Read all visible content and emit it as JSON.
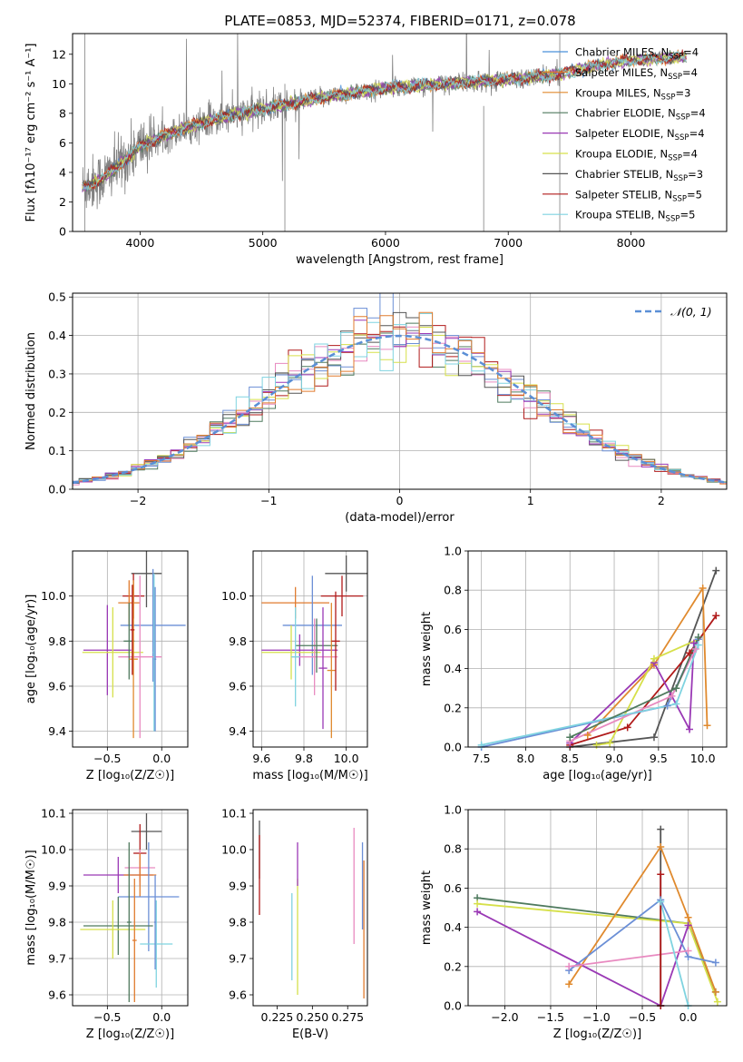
{
  "figure": {
    "title": "PLATE=0853, MJD=52374, FIBERID=0171, z=0.078"
  },
  "colors": {
    "chabrier_miles": "#4a90d9",
    "salpeter_miles": "#e07b2e",
    "kroupa_miles": "#e08a2e",
    "chabrier_elodie": "#4f7a5e",
    "salpeter_elodie": "#9a39b5",
    "kroupa_elodie": "#d6e04a",
    "chabrier_stelib": "#555555",
    "salpeter_stelib": "#b01a1a",
    "kroupa_stelib": "#7fd3e0",
    "pink": "#e88ac0",
    "blue": "#6b8fd6",
    "lime": "#b7e04a",
    "grid": "#b0b0b0",
    "data_gray": "#808080",
    "normal_curve": "#5b8fd6"
  },
  "chart_data": [
    {
      "id": "spectrum",
      "type": "line",
      "xlabel": "wavelength [Angstrom, rest frame]",
      "ylabel": "Flux [fλ10⁻¹⁷ erg cm⁻² s⁻¹ A⁻¹]",
      "xlim": [
        3450,
        8780
      ],
      "ylim": [
        0,
        13.4
      ],
      "xticks": [
        4000,
        5000,
        6000,
        7000,
        8000
      ],
      "yticks": [
        0,
        2,
        4,
        6,
        8,
        10,
        12
      ],
      "grid": false,
      "legend_position": "top-right",
      "legend": [
        {
          "label": "Chabrier MILES, N",
          "sub": "SSP",
          "suffix": "=4",
          "color": "chabrier_miles"
        },
        {
          "label": "Salpeter MILES, N",
          "sub": "SSP",
          "suffix": "=4",
          "color": "salpeter_miles"
        },
        {
          "label": "Kroupa MILES, N",
          "sub": "SSP",
          "suffix": "=3",
          "color": "kroupa_miles"
        },
        {
          "label": "Chabrier ELODIE, N",
          "sub": "SSP",
          "suffix": "=4",
          "color": "chabrier_elodie"
        },
        {
          "label": "Salpeter ELODIE, N",
          "sub": "SSP",
          "suffix": "=4",
          "color": "salpeter_elodie"
        },
        {
          "label": "Kroupa ELODIE, N",
          "sub": "SSP",
          "suffix": "=4",
          "color": "kroupa_elodie"
        },
        {
          "label": "Chabrier STELIB, N",
          "sub": "SSP",
          "suffix": "=3",
          "color": "chabrier_stelib"
        },
        {
          "label": "Salpeter STELIB, N",
          "sub": "SSP",
          "suffix": "=5",
          "color": "salpeter_stelib"
        },
        {
          "label": "Kroupa STELIB, N",
          "sub": "SSP",
          "suffix": "=5",
          "color": "kroupa_stelib"
        }
      ],
      "continuum": [
        [
          3530,
          3.0
        ],
        [
          3700,
          3.6
        ],
        [
          3900,
          5.0
        ],
        [
          4000,
          5.8
        ],
        [
          4300,
          6.8
        ],
        [
          4600,
          7.6
        ],
        [
          5000,
          8.3
        ],
        [
          5500,
          9.1
        ],
        [
          6000,
          9.7
        ],
        [
          6500,
          10.0
        ],
        [
          7000,
          10.3
        ],
        [
          7400,
          10.6
        ],
        [
          7700,
          11.2
        ],
        [
          8000,
          11.6
        ],
        [
          8400,
          11.8
        ]
      ],
      "model_range": [
        3530,
        8450
      ],
      "data_range": [
        3530,
        7430
      ]
    },
    {
      "id": "residuals",
      "type": "histogram",
      "xlabel": "(data-model)/error",
      "ylabel": "Normed distribution",
      "xlim": [
        -2.5,
        2.5
      ],
      "ylim": [
        0,
        0.51
      ],
      "xticks": [
        -2,
        -1,
        0,
        1,
        2
      ],
      "yticks": [
        0,
        0.1,
        0.2,
        0.3,
        0.4,
        0.5
      ],
      "grid": true,
      "legend": [
        {
          "label": "𝒩(0, 1)",
          "style": "dashed",
          "color": "normal_curve"
        }
      ],
      "legend_position": "top-right",
      "bin_width": 0.1,
      "series_colors": [
        "chabrier_elodie",
        "salpeter_stelib",
        "pink",
        "kroupa_elodie",
        "blue",
        "chabrier_stelib",
        "salpeter_elodie",
        "kroupa_stelib",
        "salpeter_miles"
      ]
    },
    {
      "id": "age_vs_Z",
      "type": "errorbar",
      "xlabel": "Z [log₁₀(Z/Z☉)]",
      "ylabel": "age  [log₁₀(age/yr)]",
      "xlim": [
        -0.82,
        0.24
      ],
      "ylim": [
        9.33,
        10.2
      ],
      "xticks": [
        -0.5,
        0.0
      ],
      "yticks": [
        9.4,
        9.6,
        9.8,
        10.0
      ],
      "grid": true,
      "points": [
        {
          "x": -0.14,
          "y": 10.1,
          "xerr": 0.14,
          "yerr": 0.15,
          "color": "chabrier_stelib"
        },
        {
          "x": -0.26,
          "y": 10.0,
          "xerr": 0.1,
          "yerr": 0.1,
          "color": "salpeter_stelib"
        },
        {
          "x": -0.3,
          "y": 9.97,
          "xerr": 0.1,
          "yerr": 0.1,
          "color": "salpeter_miles"
        },
        {
          "x": -0.08,
          "y": 9.87,
          "xerr": 0.3,
          "yerr": 0.25,
          "color": "blue"
        },
        {
          "x": -0.5,
          "y": 9.76,
          "xerr": 0.22,
          "yerr": 0.2,
          "color": "salpeter_elodie"
        },
        {
          "x": -0.45,
          "y": 9.75,
          "xerr": 0.28,
          "yerr": 0.2,
          "color": "kroupa_elodie"
        },
        {
          "x": -0.2,
          "y": 9.73,
          "xerr": 0.2,
          "yerr": 0.36,
          "color": "pink"
        },
        {
          "x": -0.3,
          "y": 9.8,
          "xerr": 0.05,
          "yerr": 0.17,
          "color": "chabrier_elodie"
        },
        {
          "x": -0.26,
          "y": 9.72,
          "xerr": 0.04,
          "yerr": 0.35,
          "color": "kroupa_miles"
        },
        {
          "x": -0.27,
          "y": 9.85,
          "xerr": 0.02,
          "yerr": 0.2,
          "color": "salpeter_stelib"
        },
        {
          "x": -0.07,
          "y": 9.75,
          "xerr": 0.01,
          "yerr": 0.35,
          "color": "kroupa_stelib"
        },
        {
          "x": -0.06,
          "y": 9.72,
          "xerr": 0.01,
          "yerr": 0.32,
          "color": "blue"
        }
      ]
    },
    {
      "id": "age_vs_mass",
      "type": "errorbar",
      "xlabel": "mass [log₁₀(M/M☉)]",
      "ylabel": "",
      "xlim": [
        9.56,
        10.1
      ],
      "ylim": [
        9.33,
        10.2
      ],
      "xticks": [
        9.6,
        9.8,
        10.0
      ],
      "yticks": [
        9.4,
        9.6,
        9.8,
        10.0
      ],
      "grid": true,
      "points": [
        {
          "x": 10.0,
          "y": 10.1,
          "xerr": 0.1,
          "yerr": 0.08,
          "color": "chabrier_stelib"
        },
        {
          "x": 9.98,
          "y": 10.0,
          "xerr": 0.1,
          "yerr": 0.09,
          "color": "salpeter_stelib"
        },
        {
          "x": 9.76,
          "y": 9.97,
          "xerr": 0.16,
          "yerr": 0.07,
          "color": "salpeter_miles"
        },
        {
          "x": 9.84,
          "y": 9.87,
          "xerr": 0.14,
          "yerr": 0.22,
          "color": "blue"
        },
        {
          "x": 9.78,
          "y": 9.76,
          "xerr": 0.18,
          "yerr": 0.07,
          "color": "salpeter_elodie"
        },
        {
          "x": 9.74,
          "y": 9.75,
          "xerr": 0.14,
          "yerr": 0.12,
          "color": "kroupa_elodie"
        },
        {
          "x": 9.85,
          "y": 9.73,
          "xerr": 0.11,
          "yerr": 0.17,
          "color": "pink"
        },
        {
          "x": 9.86,
          "y": 9.78,
          "xerr": 0.1,
          "yerr": 0.12,
          "color": "chabrier_elodie"
        },
        {
          "x": 9.93,
          "y": 9.67,
          "xerr": 0.02,
          "yerr": 0.3,
          "color": "kroupa_miles"
        },
        {
          "x": 9.95,
          "y": 9.8,
          "xerr": 0.02,
          "yerr": 0.22,
          "color": "salpeter_stelib"
        },
        {
          "x": 9.76,
          "y": 9.73,
          "xerr": 0.02,
          "yerr": 0.22,
          "color": "kroupa_stelib"
        },
        {
          "x": 9.89,
          "y": 9.68,
          "xerr": 0.02,
          "yerr": 0.27,
          "color": "salpeter_elodie"
        }
      ]
    },
    {
      "id": "weight_vs_age",
      "type": "line",
      "xlabel": "age  [log₁₀(age/yr)]",
      "ylabel": "mass weight",
      "xlim": [
        7.35,
        10.27
      ],
      "ylim": [
        0,
        1.0
      ],
      "xticks": [
        7.5,
        8.0,
        8.5,
        9.0,
        9.5,
        10.0
      ],
      "yticks": [
        0.0,
        0.2,
        0.4,
        0.6,
        0.8,
        1.0
      ],
      "grid": true,
      "series": [
        {
          "color": "chabrier_stelib",
          "x": [
            8.5,
            9.45,
            10.15
          ],
          "y": [
            0.0,
            0.05,
            0.9
          ]
        },
        {
          "color": "salpeter_stelib",
          "x": [
            8.5,
            9.15,
            9.85,
            10.15
          ],
          "y": [
            0.01,
            0.1,
            0.48,
            0.67
          ]
        },
        {
          "color": "kroupa_miles",
          "x": [
            8.7,
            9.45,
            10.0,
            10.05
          ],
          "y": [
            0.06,
            0.42,
            0.81,
            0.11
          ]
        },
        {
          "color": "salpeter_elodie",
          "x": [
            8.5,
            9.45,
            9.85,
            9.9
          ],
          "y": [
            0.02,
            0.43,
            0.09,
            0.53
          ]
        },
        {
          "color": "kroupa_elodie",
          "x": [
            8.8,
            8.95,
            9.45,
            9.95
          ],
          "y": [
            0.01,
            0.02,
            0.45,
            0.55
          ]
        },
        {
          "color": "blue",
          "x": [
            7.5,
            9.6,
            9.95
          ],
          "y": [
            0.0,
            0.21,
            0.55
          ]
        },
        {
          "color": "pink",
          "x": [
            8.5,
            9.65,
            9.92
          ],
          "y": [
            0.03,
            0.26,
            0.5
          ]
        },
        {
          "color": "kroupa_stelib",
          "x": [
            7.5,
            9.7,
            9.95
          ],
          "y": [
            0.01,
            0.22,
            0.52
          ]
        },
        {
          "color": "chabrier_elodie",
          "x": [
            8.5,
            9.7,
            9.95
          ],
          "y": [
            0.05,
            0.3,
            0.56
          ]
        }
      ]
    },
    {
      "id": "mass_vs_Z",
      "type": "errorbar",
      "xlabel": "Z [log₁₀(Z/Z☉)]",
      "ylabel": "mass [log₁₀(M/M☉)]",
      "xlim": [
        -0.82,
        0.24
      ],
      "ylim": [
        9.57,
        10.11
      ],
      "xticks": [
        -0.5,
        0.0
      ],
      "yticks": [
        9.6,
        9.7,
        9.8,
        9.9,
        10.0,
        10.1
      ],
      "grid": true,
      "points": [
        {
          "x": -0.14,
          "y": 10.05,
          "xerr": 0.14,
          "yerr": 0.05,
          "color": "chabrier_stelib"
        },
        {
          "x": -0.2,
          "y": 9.99,
          "xerr": 0.06,
          "yerr": 0.08,
          "color": "salpeter_stelib"
        },
        {
          "x": -0.2,
          "y": 9.95,
          "xerr": 0.14,
          "yerr": 0.05,
          "color": "pink"
        },
        {
          "x": -0.4,
          "y": 9.93,
          "xerr": 0.32,
          "yerr": 0.05,
          "color": "salpeter_elodie"
        },
        {
          "x": -0.2,
          "y": 9.93,
          "xerr": 0.15,
          "yerr": 0.06,
          "color": "salpeter_miles"
        },
        {
          "x": -0.12,
          "y": 9.87,
          "xerr": 0.28,
          "yerr": 0.15,
          "color": "blue"
        },
        {
          "x": -0.4,
          "y": 9.79,
          "xerr": 0.32,
          "yerr": 0.08,
          "color": "chabrier_elodie"
        },
        {
          "x": -0.45,
          "y": 9.78,
          "xerr": 0.3,
          "yerr": 0.08,
          "color": "kroupa_elodie"
        },
        {
          "x": -0.05,
          "y": 9.74,
          "xerr": 0.15,
          "yerr": 0.12,
          "color": "kroupa_stelib"
        },
        {
          "x": -0.3,
          "y": 9.8,
          "xerr": 0.02,
          "yerr": 0.22,
          "color": "chabrier_elodie"
        },
        {
          "x": -0.25,
          "y": 9.75,
          "xerr": 0.02,
          "yerr": 0.17,
          "color": "salpeter_miles"
        },
        {
          "x": -0.06,
          "y": 9.8,
          "xerr": 0.01,
          "yerr": 0.13,
          "color": "blue"
        }
      ]
    },
    {
      "id": "mass_vs_ebv",
      "type": "errorbar",
      "xlabel": "E(B-V)",
      "ylabel": "",
      "xlim": [
        0.208,
        0.289
      ],
      "ylim": [
        9.57,
        10.11
      ],
      "xticks": [
        0.225,
        0.25,
        0.275
      ],
      "xticklabels": [
        "0.225",
        "0.250",
        "0.275"
      ],
      "yticks": [
        9.6,
        9.7,
        9.8,
        9.9,
        10.0,
        10.1
      ],
      "grid": false,
      "points": [
        {
          "x": 0.2125,
          "y": 10.0,
          "yerr": 0.08,
          "color": "chabrier_stelib"
        },
        {
          "x": 0.2125,
          "y": 9.93,
          "yerr": 0.11,
          "color": "salpeter_stelib"
        },
        {
          "x": 0.2355,
          "y": 9.76,
          "yerr": 0.12,
          "color": "kroupa_stelib"
        },
        {
          "x": 0.2395,
          "y": 9.76,
          "yerr": 0.16,
          "color": "kroupa_elodie"
        },
        {
          "x": 0.2395,
          "y": 9.96,
          "yerr": 0.06,
          "color": "salpeter_elodie"
        },
        {
          "x": 0.2795,
          "y": 9.9,
          "yerr": 0.16,
          "color": "pink"
        },
        {
          "x": 0.2855,
          "y": 9.9,
          "yerr": 0.12,
          "color": "blue"
        },
        {
          "x": 0.2865,
          "y": 9.78,
          "yerr": 0.19,
          "color": "salpeter_miles"
        }
      ]
    },
    {
      "id": "weight_vs_Z",
      "type": "line",
      "xlabel": "Z [log₁₀(Z/Z☉)]",
      "ylabel": "mass weight",
      "xlim": [
        -2.4,
        0.42
      ],
      "ylim": [
        0,
        1.0
      ],
      "xticks": [
        -2.0,
        -1.5,
        -1.0,
        -0.5,
        0.0
      ],
      "yticks": [
        0.0,
        0.2,
        0.4,
        0.6,
        0.8,
        1.0
      ],
      "grid": true,
      "series": [
        {
          "color": "chabrier_elodie",
          "x": [
            -2.3,
            0.0,
            0.3
          ],
          "y": [
            0.55,
            0.42,
            0.07
          ]
        },
        {
          "color": "kroupa_elodie",
          "x": [
            -2.3,
            0.0,
            0.32
          ],
          "y": [
            0.52,
            0.42,
            0.02
          ]
        },
        {
          "color": "salpeter_elodie",
          "x": [
            -2.3,
            -0.3,
            0.0
          ],
          "y": [
            0.48,
            0.0,
            0.41
          ]
        },
        {
          "color": "kroupa_miles",
          "x": [
            -1.3,
            -0.3,
            0.0,
            0.3
          ],
          "y": [
            0.11,
            0.81,
            0.45,
            0.07
          ]
        },
        {
          "color": "blue",
          "x": [
            -1.3,
            -0.3,
            0.0,
            0.3
          ],
          "y": [
            0.18,
            0.54,
            0.25,
            0.22
          ]
        },
        {
          "color": "pink",
          "x": [
            -1.3,
            0.0
          ],
          "y": [
            0.2,
            0.28
          ]
        },
        {
          "color": "kroupa_stelib",
          "x": [
            -0.3,
            0.0
          ],
          "y": [
            0.53,
            0.0
          ]
        },
        {
          "color": "chabrier_stelib",
          "x": [
            -0.3,
            -0.3
          ],
          "y": [
            0.9,
            0.0
          ]
        },
        {
          "color": "salpeter_stelib",
          "x": [
            -0.3,
            -0.3
          ],
          "y": [
            0.67,
            0.0
          ]
        }
      ]
    }
  ]
}
